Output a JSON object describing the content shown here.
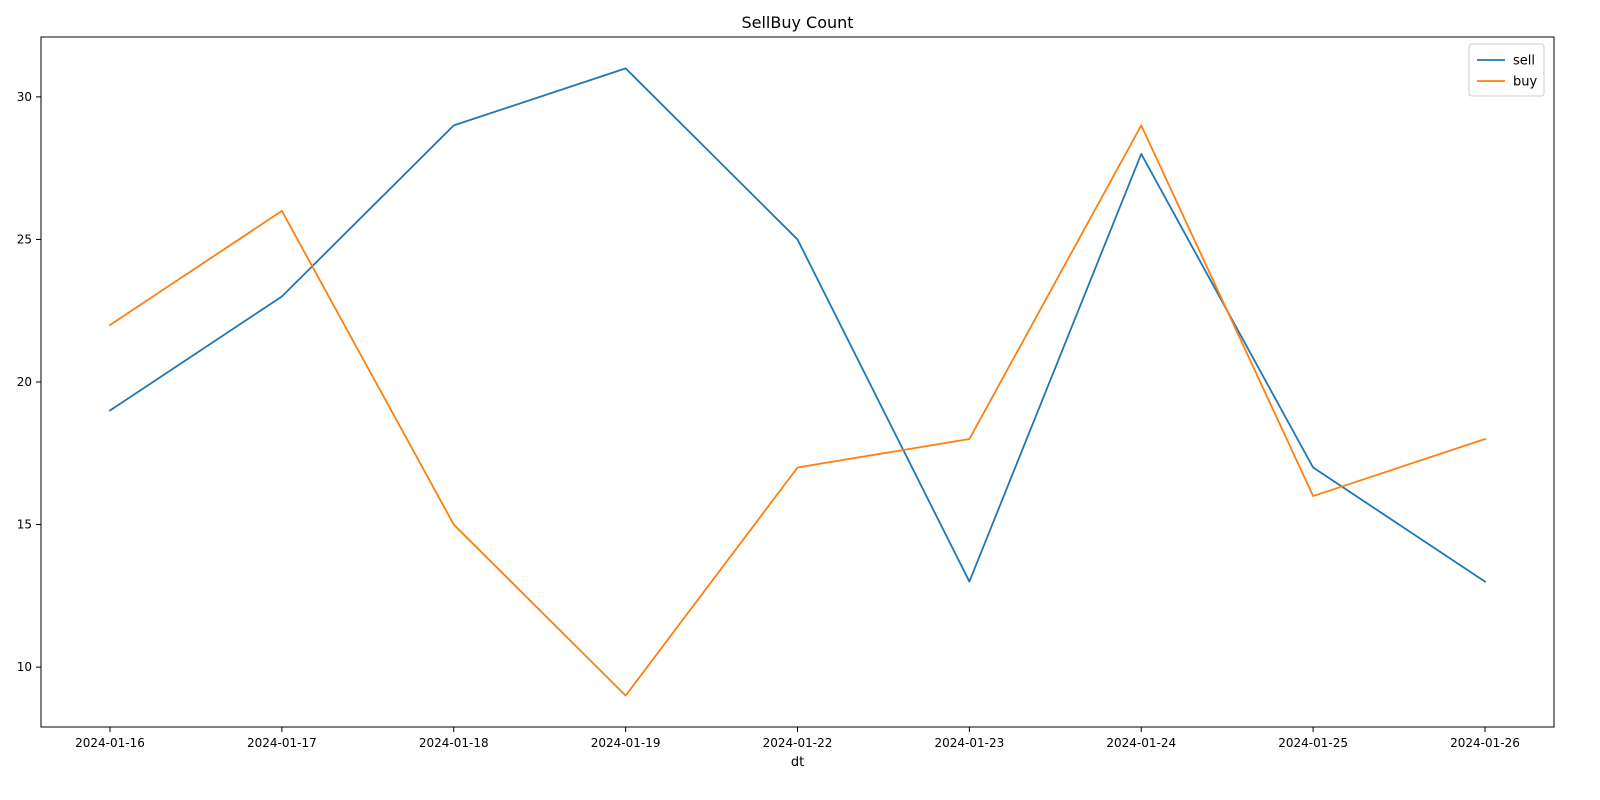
{
  "chart_data": {
    "type": "line",
    "title": "SellBuy Count",
    "xlabel": "dt",
    "ylabel": "",
    "categories": [
      "2024-01-16",
      "2024-01-17",
      "2024-01-18",
      "2024-01-19",
      "2024-01-22",
      "2024-01-23",
      "2024-01-24",
      "2024-01-25",
      "2024-01-26"
    ],
    "series": [
      {
        "name": "sell",
        "color": "#1f77b4",
        "values": [
          19,
          23,
          29,
          31,
          25,
          13,
          28,
          17,
          13
        ]
      },
      {
        "name": "buy",
        "color": "#ff7f0e",
        "values": [
          22,
          26,
          15,
          9,
          17,
          18,
          29,
          16,
          18
        ]
      }
    ],
    "ylim": [
      7.9,
      32.1
    ],
    "yticks": [
      10,
      15,
      20,
      25,
      30
    ],
    "grid": false,
    "legend_position": "top-right"
  }
}
